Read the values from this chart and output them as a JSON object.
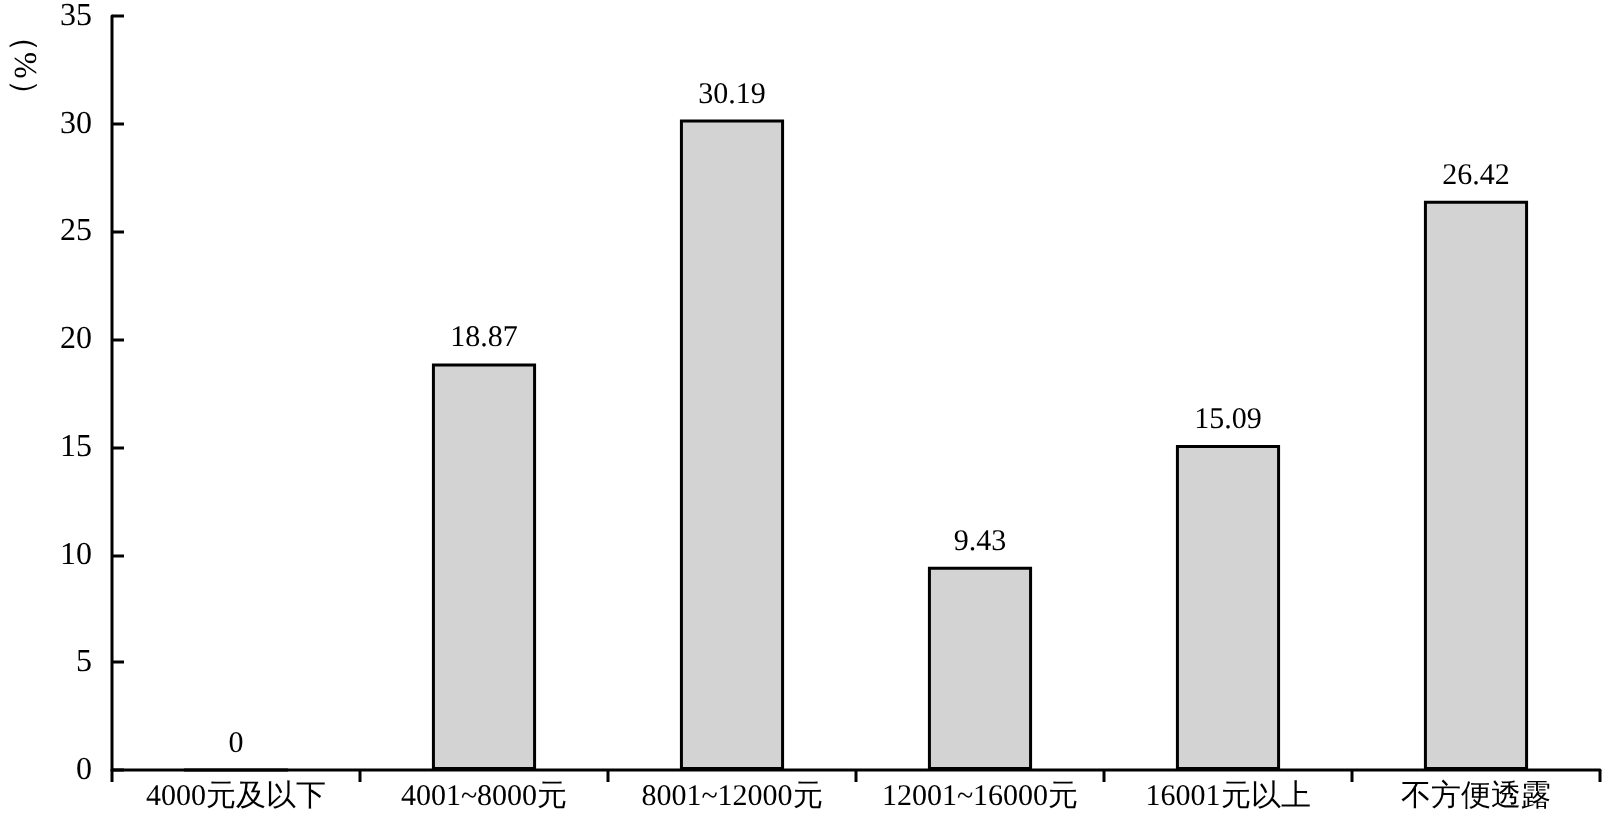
{
  "chart_data": {
    "type": "bar",
    "ylabel": "（%）",
    "categories": [
      "4000元及以下",
      "4001~8000元",
      "8001~12000元",
      "12001~16000元",
      "16001元以上",
      "不方便透露"
    ],
    "values": [
      0,
      18.87,
      30.19,
      9.43,
      15.09,
      26.42
    ],
    "color": "#d3d3d3",
    "ylim": [
      0,
      35
    ],
    "yticks": [
      0,
      5,
      10,
      15,
      20,
      25,
      30,
      35
    ],
    "grid": false,
    "data_labels": true
  }
}
